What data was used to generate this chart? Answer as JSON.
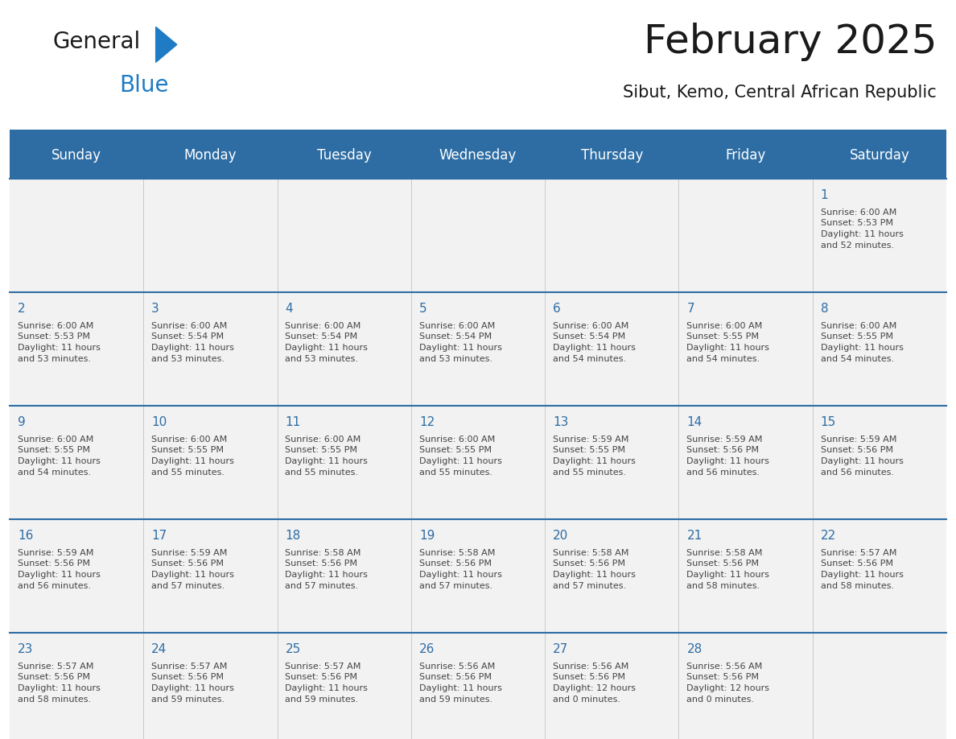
{
  "title": "February 2025",
  "subtitle": "Sibut, Kemo, Central African Republic",
  "days_of_week": [
    "Sunday",
    "Monday",
    "Tuesday",
    "Wednesday",
    "Thursday",
    "Friday",
    "Saturday"
  ],
  "header_bg": "#2E6DA4",
  "header_text": "#FFFFFF",
  "cell_bg_light": "#F2F2F2",
  "cell_bg_white": "#FFFFFF",
  "border_color": "#2E6DA4",
  "day_num_color": "#2E6DA4",
  "text_color": "#444444",
  "logo_general_color": "#1a1a1a",
  "logo_blue_color": "#1E7BC4",
  "logo_triangle_color": "#1E7BC4",
  "weeks": [
    [
      {
        "day": null,
        "sunrise": null,
        "sunset": null,
        "daylight": null
      },
      {
        "day": null,
        "sunrise": null,
        "sunset": null,
        "daylight": null
      },
      {
        "day": null,
        "sunrise": null,
        "sunset": null,
        "daylight": null
      },
      {
        "day": null,
        "sunrise": null,
        "sunset": null,
        "daylight": null
      },
      {
        "day": null,
        "sunrise": null,
        "sunset": null,
        "daylight": null
      },
      {
        "day": null,
        "sunrise": null,
        "sunset": null,
        "daylight": null
      },
      {
        "day": 1,
        "sunrise": "6:00 AM",
        "sunset": "5:53 PM",
        "daylight": "11 hours\nand 52 minutes."
      }
    ],
    [
      {
        "day": 2,
        "sunrise": "6:00 AM",
        "sunset": "5:53 PM",
        "daylight": "11 hours\nand 53 minutes."
      },
      {
        "day": 3,
        "sunrise": "6:00 AM",
        "sunset": "5:54 PM",
        "daylight": "11 hours\nand 53 minutes."
      },
      {
        "day": 4,
        "sunrise": "6:00 AM",
        "sunset": "5:54 PM",
        "daylight": "11 hours\nand 53 minutes."
      },
      {
        "day": 5,
        "sunrise": "6:00 AM",
        "sunset": "5:54 PM",
        "daylight": "11 hours\nand 53 minutes."
      },
      {
        "day": 6,
        "sunrise": "6:00 AM",
        "sunset": "5:54 PM",
        "daylight": "11 hours\nand 54 minutes."
      },
      {
        "day": 7,
        "sunrise": "6:00 AM",
        "sunset": "5:55 PM",
        "daylight": "11 hours\nand 54 minutes."
      },
      {
        "day": 8,
        "sunrise": "6:00 AM",
        "sunset": "5:55 PM",
        "daylight": "11 hours\nand 54 minutes."
      }
    ],
    [
      {
        "day": 9,
        "sunrise": "6:00 AM",
        "sunset": "5:55 PM",
        "daylight": "11 hours\nand 54 minutes."
      },
      {
        "day": 10,
        "sunrise": "6:00 AM",
        "sunset": "5:55 PM",
        "daylight": "11 hours\nand 55 minutes."
      },
      {
        "day": 11,
        "sunrise": "6:00 AM",
        "sunset": "5:55 PM",
        "daylight": "11 hours\nand 55 minutes."
      },
      {
        "day": 12,
        "sunrise": "6:00 AM",
        "sunset": "5:55 PM",
        "daylight": "11 hours\nand 55 minutes."
      },
      {
        "day": 13,
        "sunrise": "5:59 AM",
        "sunset": "5:55 PM",
        "daylight": "11 hours\nand 55 minutes."
      },
      {
        "day": 14,
        "sunrise": "5:59 AM",
        "sunset": "5:56 PM",
        "daylight": "11 hours\nand 56 minutes."
      },
      {
        "day": 15,
        "sunrise": "5:59 AM",
        "sunset": "5:56 PM",
        "daylight": "11 hours\nand 56 minutes."
      }
    ],
    [
      {
        "day": 16,
        "sunrise": "5:59 AM",
        "sunset": "5:56 PM",
        "daylight": "11 hours\nand 56 minutes."
      },
      {
        "day": 17,
        "sunrise": "5:59 AM",
        "sunset": "5:56 PM",
        "daylight": "11 hours\nand 57 minutes."
      },
      {
        "day": 18,
        "sunrise": "5:58 AM",
        "sunset": "5:56 PM",
        "daylight": "11 hours\nand 57 minutes."
      },
      {
        "day": 19,
        "sunrise": "5:58 AM",
        "sunset": "5:56 PM",
        "daylight": "11 hours\nand 57 minutes."
      },
      {
        "day": 20,
        "sunrise": "5:58 AM",
        "sunset": "5:56 PM",
        "daylight": "11 hours\nand 57 minutes."
      },
      {
        "day": 21,
        "sunrise": "5:58 AM",
        "sunset": "5:56 PM",
        "daylight": "11 hours\nand 58 minutes."
      },
      {
        "day": 22,
        "sunrise": "5:57 AM",
        "sunset": "5:56 PM",
        "daylight": "11 hours\nand 58 minutes."
      }
    ],
    [
      {
        "day": 23,
        "sunrise": "5:57 AM",
        "sunset": "5:56 PM",
        "daylight": "11 hours\nand 58 minutes."
      },
      {
        "day": 24,
        "sunrise": "5:57 AM",
        "sunset": "5:56 PM",
        "daylight": "11 hours\nand 59 minutes."
      },
      {
        "day": 25,
        "sunrise": "5:57 AM",
        "sunset": "5:56 PM",
        "daylight": "11 hours\nand 59 minutes."
      },
      {
        "day": 26,
        "sunrise": "5:56 AM",
        "sunset": "5:56 PM",
        "daylight": "11 hours\nand 59 minutes."
      },
      {
        "day": 27,
        "sunrise": "5:56 AM",
        "sunset": "5:56 PM",
        "daylight": "12 hours\nand 0 minutes."
      },
      {
        "day": 28,
        "sunrise": "5:56 AM",
        "sunset": "5:56 PM",
        "daylight": "12 hours\nand 0 minutes."
      },
      {
        "day": null,
        "sunrise": null,
        "sunset": null,
        "daylight": null
      }
    ]
  ],
  "fig_width": 11.88,
  "fig_height": 9.18,
  "title_fontsize": 36,
  "subtitle_fontsize": 15,
  "dow_fontsize": 12,
  "day_num_fontsize": 11,
  "cell_text_fontsize": 8
}
